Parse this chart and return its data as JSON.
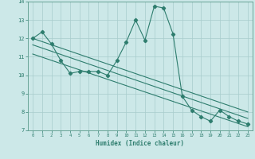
{
  "xlabel": "Humidex (Indice chaleur)",
  "ylabel": "",
  "bg_color": "#cce8e8",
  "grid_color": "#a8cccc",
  "line_color": "#2e7d6e",
  "spine_color": "#5a9a8a",
  "xlim": [
    -0.5,
    23.5
  ],
  "ylim": [
    7,
    14
  ],
  "xticks": [
    0,
    1,
    2,
    3,
    4,
    5,
    6,
    7,
    8,
    9,
    10,
    11,
    12,
    13,
    14,
    15,
    16,
    17,
    18,
    19,
    20,
    21,
    22,
    23
  ],
  "yticks": [
    7,
    8,
    9,
    10,
    11,
    12,
    13,
    14
  ],
  "main_x": [
    0,
    1,
    2,
    3,
    4,
    5,
    6,
    7,
    8,
    9,
    10,
    11,
    12,
    13,
    14,
    15,
    16,
    17,
    18,
    19,
    20,
    21,
    22,
    23
  ],
  "main_y": [
    12.0,
    12.35,
    11.7,
    10.8,
    10.1,
    10.2,
    10.2,
    10.2,
    10.0,
    10.8,
    11.8,
    13.0,
    11.9,
    13.75,
    13.65,
    12.25,
    8.85,
    8.1,
    7.75,
    7.5,
    8.1,
    7.75,
    7.5,
    7.35
  ],
  "trend1_x": [
    0,
    23
  ],
  "trend1_y": [
    12.0,
    8.0
  ],
  "trend2_x": [
    0,
    23
  ],
  "trend2_y": [
    11.65,
    7.65
  ],
  "trend3_x": [
    0,
    23
  ],
  "trend3_y": [
    11.15,
    7.2
  ]
}
